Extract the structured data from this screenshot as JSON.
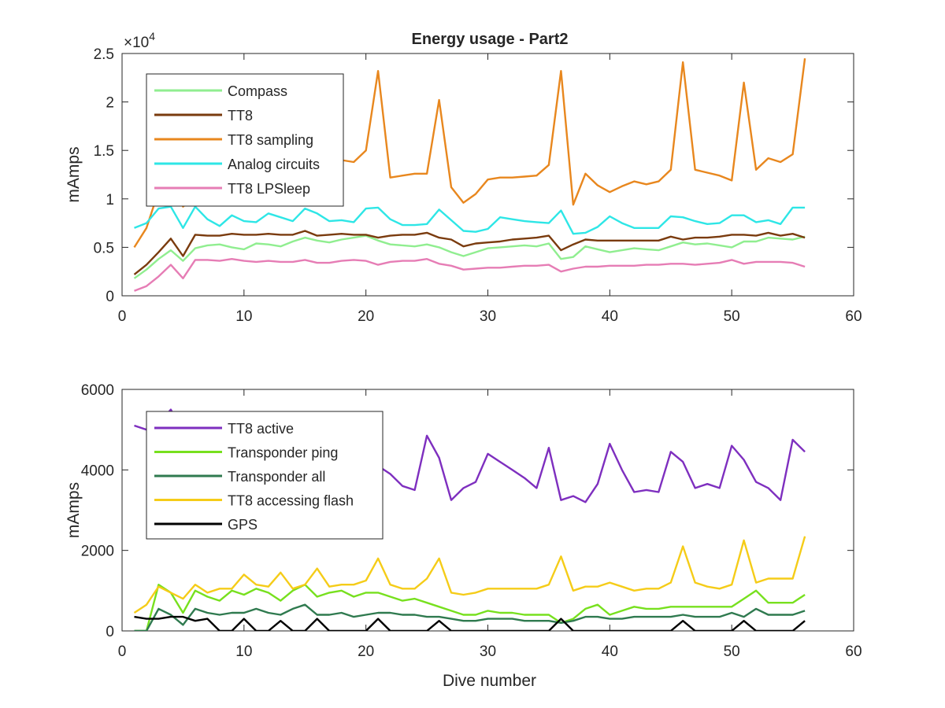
{
  "title": "Energy usage - Part2",
  "chart_data": [
    {
      "type": "line",
      "title": "Energy usage - Part2",
      "xlabel": "",
      "ylabel": "mAmps",
      "xlim": [
        0,
        60
      ],
      "ylim": [
        0,
        25000
      ],
      "xticks": [
        0,
        10,
        20,
        30,
        40,
        50,
        60
      ],
      "yticks": [
        0,
        5000,
        10000,
        15000,
        20000,
        25000
      ],
      "ytick_labels": [
        "0",
        "0.5",
        "1",
        "1.5",
        "2",
        "2.5"
      ],
      "exponent_label": "×10",
      "exponent_power": "4",
      "legend_position": "top-left",
      "grid": false,
      "x": [
        1,
        2,
        3,
        4,
        5,
        6,
        7,
        8,
        9,
        10,
        11,
        12,
        13,
        14,
        15,
        16,
        17,
        18,
        19,
        20,
        21,
        22,
        23,
        24,
        25,
        26,
        27,
        28,
        29,
        30,
        31,
        32,
        33,
        34,
        35,
        36,
        37,
        38,
        39,
        40,
        41,
        42,
        43,
        44,
        45,
        46,
        47,
        48,
        49,
        50,
        51,
        52,
        53,
        54,
        55,
        56
      ],
      "series": [
        {
          "name": "Compass",
          "color": "#90ee90",
          "values": [
            1800,
            2700,
            3800,
            4700,
            3600,
            4900,
            5200,
            5300,
            5000,
            4800,
            5400,
            5300,
            5100,
            5600,
            6000,
            5700,
            5500,
            5800,
            6000,
            6200,
            5700,
            5300,
            5200,
            5100,
            5300,
            5000,
            4500,
            4100,
            4500,
            4900,
            5000,
            5100,
            5200,
            5100,
            5400,
            3800,
            4000,
            5100,
            4800,
            4500,
            4700,
            4900,
            4800,
            4700,
            5100,
            5500,
            5300,
            5400,
            5200,
            5000,
            5600,
            5600,
            6000,
            5900,
            5800,
            6100
          ]
        },
        {
          "name": "TT8",
          "color": "#7a3b0e",
          "values": [
            2200,
            3200,
            4500,
            5900,
            4100,
            6300,
            6200,
            6200,
            6400,
            6300,
            6300,
            6400,
            6300,
            6300,
            6700,
            6200,
            6300,
            6400,
            6300,
            6300,
            6000,
            6200,
            6300,
            6300,
            6500,
            6000,
            5800,
            5100,
            5400,
            5500,
            5600,
            5800,
            5900,
            6000,
            6200,
            4700,
            5300,
            5800,
            5700,
            5700,
            5700,
            5700,
            5700,
            5700,
            6100,
            5800,
            6000,
            6000,
            6100,
            6300,
            6300,
            6200,
            6500,
            6200,
            6400,
            6000
          ]
        },
        {
          "name": "TT8 sampling",
          "color": "#e8871e",
          "values": [
            5000,
            7000,
            10800,
            11500,
            9200,
            10200,
            11500,
            11800,
            12200,
            12500,
            13200,
            13500,
            13600,
            13700,
            13800,
            13900,
            14000,
            14000,
            13800,
            15000,
            23200,
            12200,
            12400,
            12600,
            12600,
            20200,
            11200,
            9600,
            10500,
            12000,
            12200,
            12200,
            12300,
            12400,
            13500,
            23200,
            9400,
            12600,
            11400,
            10700,
            11300,
            11800,
            11500,
            11800,
            13000,
            24100,
            13000,
            12700,
            12400,
            11900,
            22000,
            13000,
            14200,
            13800,
            14600,
            24500
          ]
        },
        {
          "name": "Analog circuits",
          "color": "#2ee6e6",
          "values": [
            7000,
            7500,
            9000,
            9200,
            7000,
            9200,
            7900,
            7200,
            8300,
            7700,
            7600,
            8500,
            8100,
            7700,
            9000,
            8500,
            7700,
            7800,
            7600,
            9000,
            9100,
            7900,
            7300,
            7300,
            7400,
            8900,
            7800,
            6700,
            6600,
            6900,
            8100,
            7900,
            7700,
            7600,
            7500,
            8800,
            6400,
            6500,
            7100,
            8200,
            7500,
            7000,
            7000,
            7000,
            8200,
            8100,
            7700,
            7400,
            7500,
            8300,
            8300,
            7600,
            7800,
            7400,
            9100,
            9100
          ]
        },
        {
          "name": "TT8 LPSleep",
          "color": "#e67db5",
          "values": [
            500,
            1000,
            2000,
            3200,
            1800,
            3700,
            3700,
            3600,
            3800,
            3600,
            3500,
            3600,
            3500,
            3500,
            3700,
            3400,
            3400,
            3600,
            3700,
            3600,
            3200,
            3500,
            3600,
            3600,
            3800,
            3300,
            3100,
            2700,
            2800,
            2900,
            2900,
            3000,
            3100,
            3100,
            3200,
            2500,
            2800,
            3000,
            3000,
            3100,
            3100,
            3100,
            3200,
            3200,
            3300,
            3300,
            3200,
            3300,
            3400,
            3700,
            3300,
            3500,
            3500,
            3500,
            3400,
            3000
          ]
        }
      ]
    },
    {
      "type": "line",
      "title": "",
      "xlabel": "Dive number",
      "ylabel": "mAmps",
      "xlim": [
        0,
        60
      ],
      "ylim": [
        0,
        6000
      ],
      "xticks": [
        0,
        10,
        20,
        30,
        40,
        50,
        60
      ],
      "yticks": [
        0,
        2000,
        4000,
        6000
      ],
      "ytick_labels": [
        "0",
        "2000",
        "4000",
        "6000"
      ],
      "legend_position": "top-left",
      "grid": false,
      "x": [
        1,
        2,
        3,
        4,
        5,
        6,
        7,
        8,
        9,
        10,
        11,
        12,
        13,
        14,
        15,
        16,
        17,
        18,
        19,
        20,
        21,
        22,
        23,
        24,
        25,
        26,
        27,
        28,
        29,
        30,
        31,
        32,
        33,
        34,
        35,
        36,
        37,
        38,
        39,
        40,
        41,
        42,
        43,
        44,
        45,
        46,
        47,
        48,
        49,
        50,
        51,
        52,
        53,
        54,
        55,
        56
      ],
      "series": [
        {
          "name": "TT8 active",
          "color": "#7e2fbf",
          "values": [
            5100,
            5000,
            5150,
            5500,
            4900,
            4800,
            4700,
            4700,
            4600,
            4500,
            4400,
            4400,
            4300,
            4300,
            4300,
            4300,
            4200,
            4200,
            4150,
            4100,
            4100,
            3900,
            3600,
            3500,
            4850,
            4300,
            3250,
            3550,
            3700,
            4400,
            4200,
            4000,
            3800,
            3550,
            4550,
            3250,
            3350,
            3200,
            3650,
            4650,
            4000,
            3450,
            3500,
            3450,
            4450,
            4200,
            3550,
            3650,
            3550,
            4600,
            4250,
            3700,
            3550,
            3250,
            4750,
            4450
          ]
        },
        {
          "name": "Transponder ping",
          "color": "#77e01e",
          "values": [
            0,
            0,
            1150,
            950,
            450,
            1000,
            850,
            750,
            1000,
            900,
            1050,
            950,
            750,
            1000,
            1150,
            850,
            950,
            1000,
            850,
            950,
            950,
            850,
            750,
            800,
            700,
            600,
            500,
            400,
            400,
            500,
            450,
            450,
            400,
            400,
            400,
            200,
            300,
            550,
            650,
            400,
            500,
            600,
            550,
            550,
            600,
            600,
            600,
            600,
            600,
            600,
            800,
            1000,
            700,
            700,
            700,
            900
          ]
        },
        {
          "name": "Transponder all",
          "color": "#2f7a4f",
          "values": [
            0,
            0,
            550,
            400,
            150,
            550,
            450,
            400,
            450,
            450,
            550,
            450,
            400,
            550,
            650,
            400,
            400,
            450,
            350,
            400,
            450,
            450,
            400,
            400,
            350,
            350,
            300,
            250,
            250,
            300,
            300,
            300,
            250,
            250,
            250,
            200,
            250,
            350,
            350,
            300,
            300,
            350,
            350,
            350,
            350,
            400,
            350,
            350,
            350,
            450,
            350,
            550,
            400,
            400,
            400,
            500
          ]
        },
        {
          "name": "TT8 accessing flash",
          "color": "#f5cc18",
          "values": [
            450,
            650,
            1100,
            950,
            800,
            1150,
            950,
            1050,
            1050,
            1400,
            1150,
            1100,
            1450,
            1050,
            1150,
            1550,
            1100,
            1150,
            1150,
            1250,
            1800,
            1150,
            1050,
            1050,
            1300,
            1800,
            950,
            900,
            950,
            1050,
            1050,
            1050,
            1050,
            1050,
            1150,
            1850,
            1000,
            1100,
            1100,
            1200,
            1100,
            1000,
            1050,
            1050,
            1200,
            2100,
            1200,
            1100,
            1050,
            1150,
            2250,
            1200,
            1300,
            1300,
            1300,
            2350
          ]
        },
        {
          "name": "GPS",
          "color": "#000000",
          "values": [
            350,
            300,
            300,
            350,
            350,
            250,
            300,
            0,
            0,
            300,
            0,
            0,
            250,
            0,
            0,
            300,
            0,
            0,
            0,
            0,
            300,
            0,
            0,
            0,
            0,
            250,
            0,
            0,
            0,
            0,
            0,
            0,
            0,
            0,
            0,
            300,
            0,
            0,
            0,
            0,
            0,
            0,
            0,
            0,
            0,
            250,
            0,
            0,
            0,
            0,
            250,
            0,
            0,
            0,
            0,
            250
          ]
        }
      ]
    }
  ]
}
